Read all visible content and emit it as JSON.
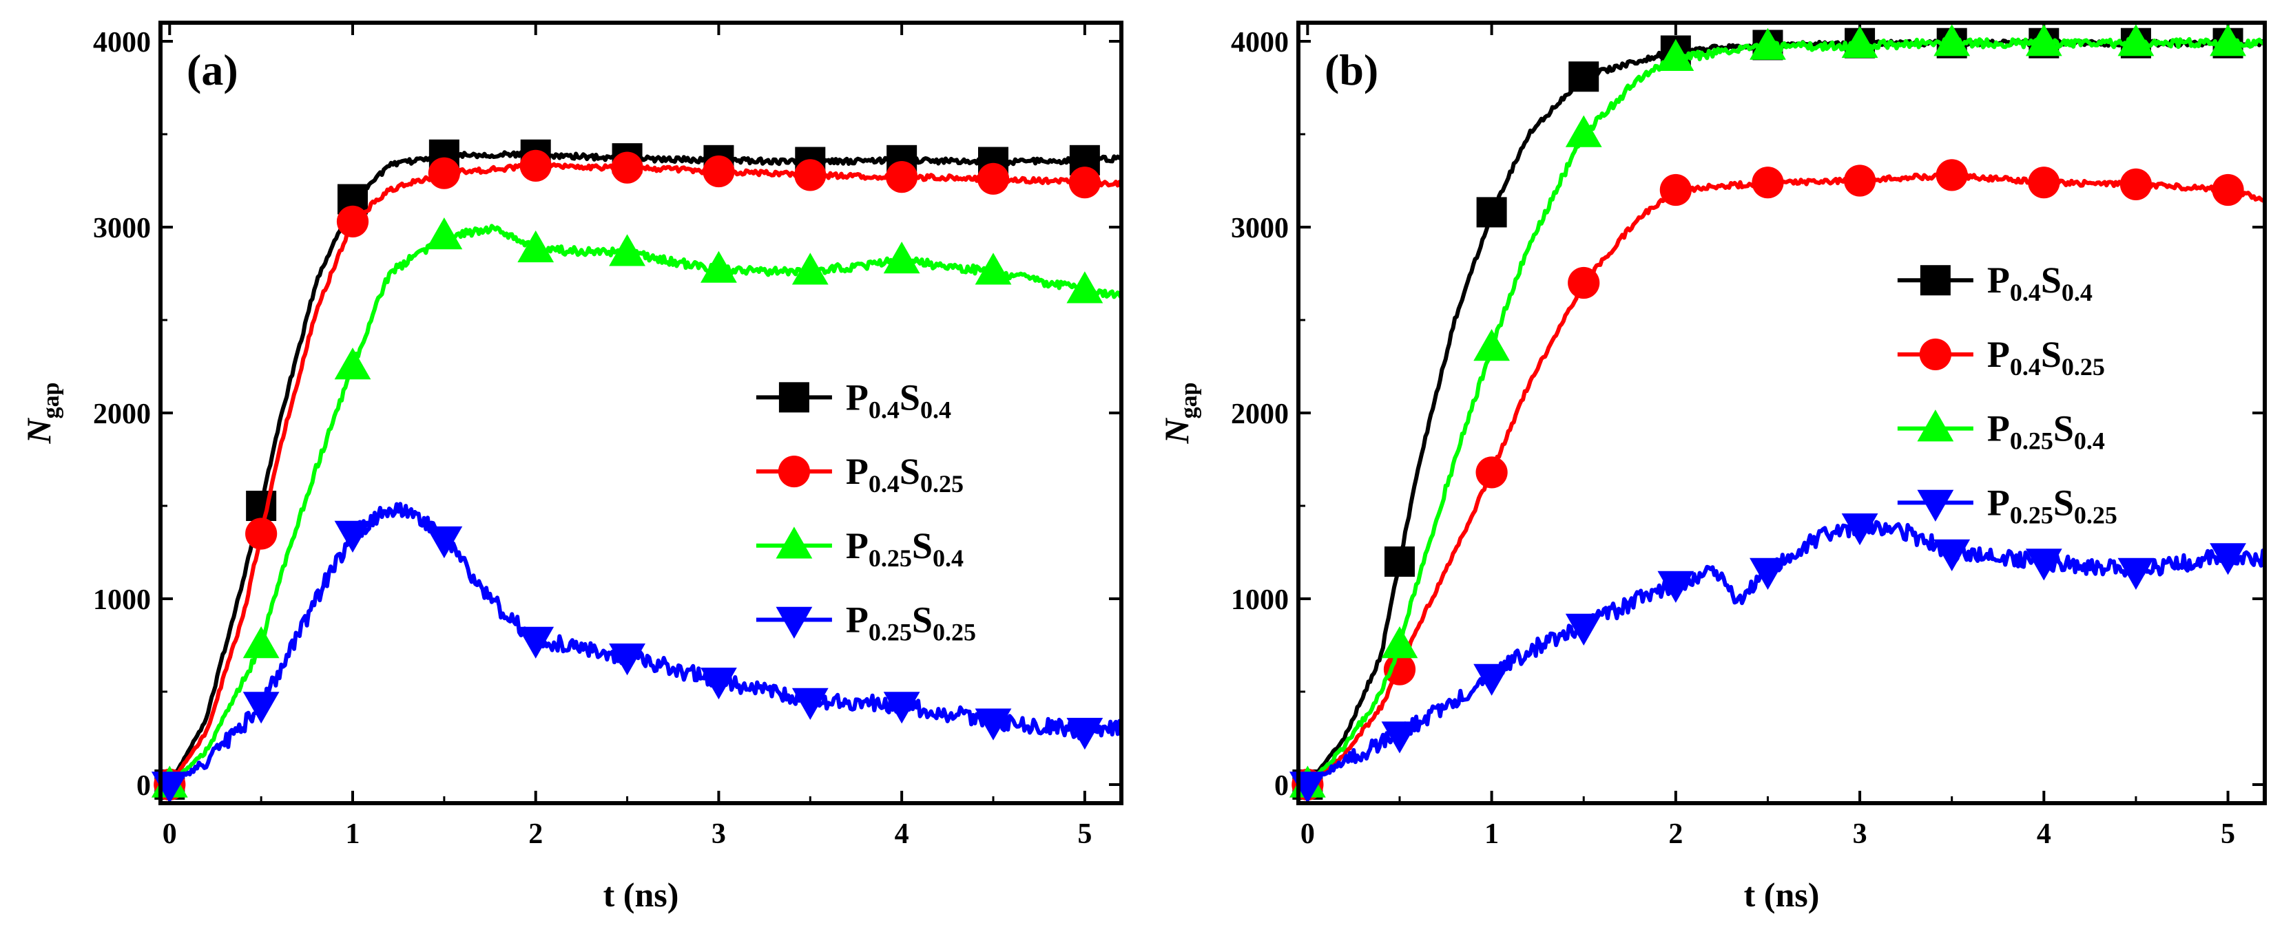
{
  "chart_data": [
    {
      "type": "line",
      "panel_label": "(a)",
      "xlabel": "t (ns)",
      "ylabel": {
        "main": "N",
        "sub": "gap"
      },
      "xlim": [
        -0.05,
        5.2
      ],
      "ylim": [
        -100,
        4100
      ],
      "xticks": [
        0,
        1,
        2,
        3,
        4,
        5
      ],
      "yticks": [
        0,
        1000,
        2000,
        3000,
        4000
      ],
      "grid": false,
      "legend_position": "center-right",
      "series": [
        {
          "name": "P0.4S0.4",
          "legend": {
            "p": "0.4",
            "s": "0.4"
          },
          "color": "#000000",
          "marker": "square",
          "x": [
            0,
            0.2,
            0.4,
            0.5,
            0.6,
            0.8,
            1.0,
            1.2,
            1.5,
            2.0,
            2.5,
            3.0,
            3.5,
            4.0,
            4.5,
            5.0,
            5.2
          ],
          "y": [
            0,
            350,
            1100,
            1500,
            1950,
            2700,
            3150,
            3330,
            3390,
            3390,
            3370,
            3360,
            3350,
            3360,
            3350,
            3360,
            3370
          ]
        },
        {
          "name": "P0.4S0.25",
          "legend": {
            "p": "0.4",
            "s": "0.25"
          },
          "color": "#ff0000",
          "marker": "circle",
          "x": [
            0,
            0.2,
            0.4,
            0.5,
            0.6,
            0.8,
            1.0,
            1.2,
            1.5,
            2.0,
            2.5,
            3.0,
            3.5,
            4.0,
            4.5,
            5.0,
            5.2
          ],
          "y": [
            0,
            280,
            900,
            1350,
            1800,
            2550,
            3030,
            3200,
            3290,
            3330,
            3320,
            3300,
            3280,
            3270,
            3260,
            3240,
            3230
          ]
        },
        {
          "name": "P0.25S0.4",
          "legend": {
            "p": "0.25",
            "s": "0.4"
          },
          "color": "#00ff00",
          "marker": "triangle-up",
          "x": [
            0,
            0.2,
            0.4,
            0.5,
            0.6,
            0.8,
            1.0,
            1.2,
            1.5,
            1.8,
            2.0,
            2.5,
            3.0,
            3.5,
            4.0,
            4.5,
            5.0,
            5.2
          ],
          "y": [
            0,
            180,
            550,
            750,
            1100,
            1700,
            2250,
            2750,
            2950,
            2990,
            2880,
            2860,
            2770,
            2760,
            2820,
            2760,
            2660,
            2640
          ]
        },
        {
          "name": "P0.25S0.25",
          "legend": {
            "p": "0.25",
            "s": "0.25"
          },
          "color": "#0000ff",
          "marker": "triangle-down",
          "x": [
            0,
            0.2,
            0.4,
            0.5,
            0.6,
            0.8,
            1.0,
            1.2,
            1.3,
            1.5,
            1.8,
            2.0,
            2.5,
            3.0,
            3.5,
            4.0,
            4.5,
            5.0,
            5.2
          ],
          "y": [
            0,
            120,
            320,
            430,
            600,
            1000,
            1350,
            1480,
            1480,
            1320,
            950,
            780,
            690,
            560,
            450,
            430,
            340,
            290,
            320
          ]
        }
      ]
    },
    {
      "type": "line",
      "panel_label": "(b)",
      "xlabel": "t (ns)",
      "ylabel": {
        "main": "N",
        "sub": "gap"
      },
      "xlim": [
        -0.05,
        5.2
      ],
      "ylim": [
        -100,
        4100
      ],
      "xticks": [
        0,
        1,
        2,
        3,
        4,
        5
      ],
      "yticks": [
        0,
        1000,
        2000,
        3000,
        4000
      ],
      "grid": false,
      "legend_position": "center-right",
      "series": [
        {
          "name": "P0.4S0.4",
          "legend": {
            "p": "0.4",
            "s": "0.4"
          },
          "color": "#000000",
          "marker": "square",
          "x": [
            0,
            0.2,
            0.4,
            0.5,
            0.6,
            0.8,
            1.0,
            1.2,
            1.5,
            2.0,
            2.5,
            3.0,
            3.5,
            4.0,
            4.5,
            5.0,
            5.2
          ],
          "y": [
            0,
            250,
            700,
            1200,
            1700,
            2500,
            3080,
            3500,
            3810,
            3950,
            3980,
            3990,
            3990,
            3990,
            3990,
            3990,
            3990
          ]
        },
        {
          "name": "P0.4S0.25",
          "legend": {
            "p": "0.4",
            "s": "0.25"
          },
          "color": "#ff0000",
          "marker": "circle",
          "x": [
            0,
            0.2,
            0.4,
            0.5,
            0.6,
            0.8,
            1.0,
            1.2,
            1.5,
            1.8,
            2.0,
            2.5,
            3.0,
            3.5,
            4.0,
            4.5,
            5.0,
            5.2
          ],
          "y": [
            0,
            160,
            420,
            620,
            850,
            1250,
            1680,
            2150,
            2700,
            3050,
            3200,
            3240,
            3250,
            3280,
            3240,
            3230,
            3200,
            3150
          ]
        },
        {
          "name": "P0.25S0.4",
          "legend": {
            "p": "0.25",
            "s": "0.4"
          },
          "color": "#00ff00",
          "marker": "triangle-up",
          "x": [
            0,
            0.2,
            0.4,
            0.5,
            0.6,
            0.8,
            1.0,
            1.2,
            1.5,
            1.8,
            2.0,
            2.5,
            3.0,
            3.5,
            4.0,
            4.5,
            5.0,
            5.2
          ],
          "y": [
            0,
            200,
            500,
            750,
            1100,
            1750,
            2350,
            2900,
            3500,
            3800,
            3910,
            3970,
            3980,
            3990,
            3990,
            3990,
            3990,
            3990
          ]
        },
        {
          "name": "P0.25S0.25",
          "legend": {
            "p": "0.25",
            "s": "0.25"
          },
          "color": "#0000ff",
          "marker": "triangle-down",
          "x": [
            0,
            0.2,
            0.4,
            0.5,
            0.6,
            0.8,
            1.0,
            1.2,
            1.5,
            1.8,
            2.0,
            2.2,
            2.35,
            2.5,
            2.8,
            3.0,
            3.2,
            3.5,
            4.0,
            4.5,
            5.0,
            5.2
          ],
          "y": [
            0,
            130,
            220,
            270,
            330,
            450,
            580,
            720,
            850,
            1000,
            1080,
            1150,
            980,
            1150,
            1350,
            1390,
            1380,
            1250,
            1200,
            1150,
            1230,
            1220
          ]
        }
      ]
    }
  ]
}
